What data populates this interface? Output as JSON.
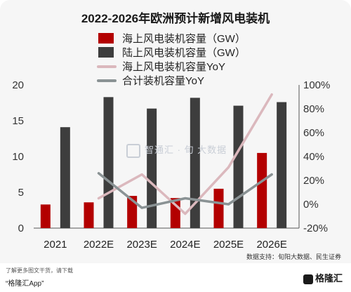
{
  "chart_data": {
    "type": "bar",
    "title": "2022-2026年欧洲预计新增风电装机",
    "categories": [
      "2021",
      "2022E",
      "2023E",
      "2024E",
      "2025E",
      "2026E"
    ],
    "y_left": {
      "min": 0,
      "max": 20,
      "ticks": [
        "0",
        "5",
        "10",
        "15",
        "20"
      ]
    },
    "y_right": {
      "min": -20,
      "max": 100,
      "ticks": [
        "-20%",
        "0%",
        "20%",
        "40%",
        "60%",
        "80%",
        "100%"
      ]
    },
    "series": [
      {
        "name": "海上风电装机容量（GW）",
        "kind": "bar",
        "axis": "left",
        "color": "#b30000",
        "values": [
          3.3,
          3.6,
          4.5,
          4.2,
          5.5,
          10.5
        ]
      },
      {
        "name": "陆上风电装机容量（GW）",
        "kind": "bar",
        "axis": "left",
        "color": "#3d3d3d",
        "values": [
          14.1,
          18.3,
          16.7,
          18.2,
          17.1,
          17.6
        ]
      },
      {
        "name": "海上风电装机容量YoY",
        "kind": "line",
        "axis": "right",
        "color": "#dbb8bd",
        "values": [
          null,
          5,
          25,
          -8,
          31,
          92
        ]
      },
      {
        "name": "合计装机容量YoY",
        "kind": "line",
        "axis": "right",
        "color": "#8a9294",
        "values": [
          null,
          26,
          -3,
          5,
          0,
          25
        ]
      }
    ],
    "grid": false,
    "legend": "top-center"
  },
  "watermark": "智通汇 · 旬 大数据",
  "source": "数据支持：旬阳大数据、民生证券",
  "footer": {
    "note": "了解更多图文干货，请下载",
    "app": "“格隆汇App”",
    "brand": "格隆汇"
  }
}
